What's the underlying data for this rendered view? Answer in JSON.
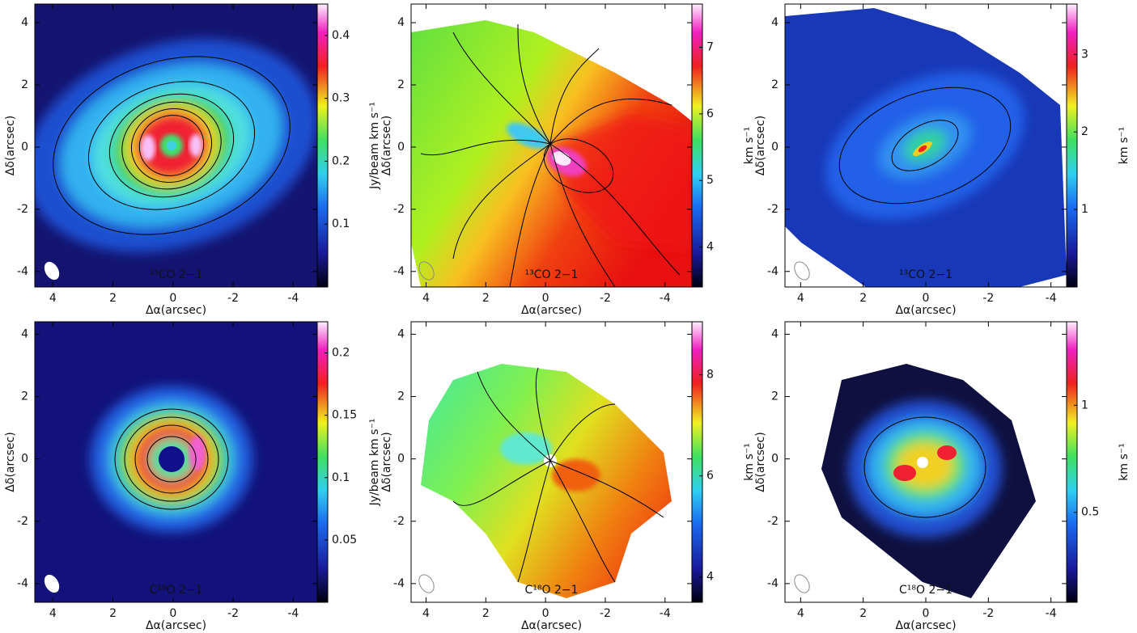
{
  "chart_data": [
    {
      "type": "image",
      "annotation": "¹³CO 2−1",
      "xlabel": "Δα(arcsec)",
      "ylabel": "Δδ(arcsec)",
      "xlim": [
        4.6,
        -4.8
      ],
      "ylim": [
        -4.5,
        4.6
      ],
      "xticks": [
        4,
        2,
        0,
        -2,
        -4
      ],
      "yticks": [
        -4,
        -2,
        0,
        2,
        4
      ],
      "colorbar": {
        "label": "Jy/beam km s⁻¹",
        "lim": [
          0,
          0.45
        ],
        "ticks": [
          0.1,
          0.2,
          0.3,
          0.4
        ]
      }
    },
    {
      "type": "image",
      "annotation": "¹³CO 2−1",
      "xlabel": "Δα(arcsec)",
      "ylabel": "Δδ(arcsec)",
      "xlim": [
        4.5,
        -4.9
      ],
      "ylim": [
        -4.5,
        4.6
      ],
      "xticks": [
        4,
        2,
        0,
        -2,
        -4
      ],
      "yticks": [
        -4,
        -2,
        0,
        2,
        4
      ],
      "colorbar": {
        "label": "km s⁻¹",
        "lim": [
          3.4,
          7.65
        ],
        "ticks": [
          4,
          5,
          6,
          7
        ]
      }
    },
    {
      "type": "image",
      "annotation": "¹³CO 2−1",
      "xlabel": "Δα(arcsec)",
      "ylabel": "Δδ(arcsec)",
      "xlim": [
        4.5,
        -4.5
      ],
      "ylim": [
        -4.5,
        4.6
      ],
      "xticks": [
        4,
        2,
        0,
        -2,
        -4
      ],
      "yticks": [
        -4,
        -2,
        0,
        2,
        4
      ],
      "colorbar": {
        "label": "km s⁻¹",
        "lim": [
          0,
          3.65
        ],
        "ticks": [
          1,
          2,
          3
        ]
      }
    },
    {
      "type": "image",
      "annotation": "C¹⁸O 2−1",
      "xlabel": "Δα(arcsec)",
      "ylabel": "Δδ(arcsec)",
      "xlim": [
        4.6,
        -4.8
      ],
      "ylim": [
        -4.6,
        4.4
      ],
      "xticks": [
        4,
        2,
        0,
        -2,
        -4
      ],
      "yticks": [
        -4,
        -2,
        0,
        2,
        4
      ],
      "colorbar": {
        "label": "Jy/beam km s⁻¹",
        "lim": [
          0,
          0.225
        ],
        "ticks": [
          0.05,
          0.1,
          0.15,
          0.2
        ]
      }
    },
    {
      "type": "image",
      "annotation": "C¹⁸O 2−1",
      "xlabel": "Δα(arcsec)",
      "ylabel": "Δδ(arcsec)",
      "xlim": [
        4.5,
        -4.9
      ],
      "ylim": [
        -4.6,
        4.4
      ],
      "xticks": [
        4,
        2,
        0,
        -2,
        -4
      ],
      "yticks": [
        -4,
        -2,
        0,
        2,
        4
      ],
      "colorbar": {
        "label": "km s⁻¹",
        "lim": [
          3.5,
          9.05
        ],
        "ticks": [
          4,
          6,
          8
        ]
      }
    },
    {
      "type": "image",
      "annotation": "C¹⁸O 2−1",
      "xlabel": "Δα(arcsec)",
      "ylabel": "Δδ(arcsec)",
      "xlim": [
        4.5,
        -4.5
      ],
      "ylim": [
        -4.6,
        4.4
      ],
      "xticks": [
        4,
        2,
        0,
        -2,
        -4
      ],
      "yticks": [
        -4,
        -2,
        0,
        2,
        4
      ],
      "colorbar": {
        "label": "km s⁻¹",
        "lim": [
          0.08,
          1.39
        ],
        "ticks": [
          0.5,
          1
        ]
      }
    }
  ]
}
